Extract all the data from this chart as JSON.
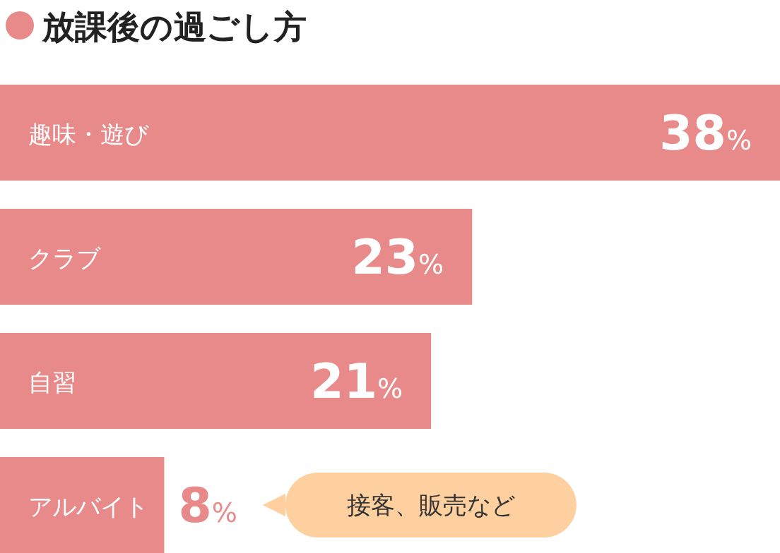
{
  "chart_data": {
    "type": "bar",
    "orientation": "horizontal",
    "title": "放課後の過ごし方",
    "categories": [
      "趣味・遊び",
      "クラブ",
      "自習",
      "アルバイト"
    ],
    "values": [
      38,
      23,
      21,
      8
    ],
    "value_labels": [
      "38%",
      "23%",
      "21%",
      "8%"
    ],
    "color": "#e88a8a",
    "annotations": [
      "接客、販売など"
    ]
  }
}
